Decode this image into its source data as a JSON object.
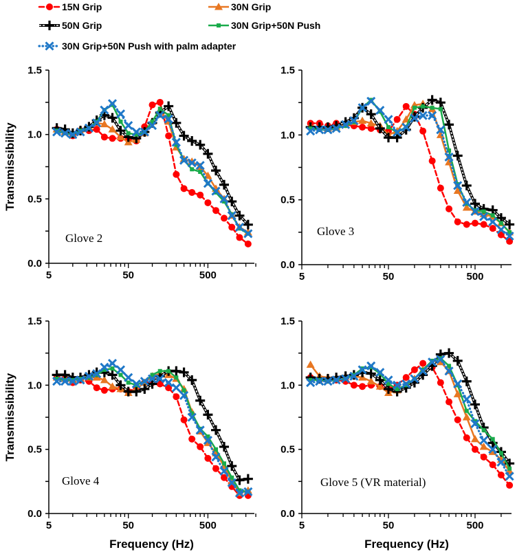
{
  "legend": {
    "placement": "top",
    "entries": [
      {
        "name": "15N Grip",
        "color": "#ff0000",
        "marker": "circle",
        "line": "dashed"
      },
      {
        "name": "30N Grip",
        "color": "#e87722",
        "marker": "triangle",
        "line": "solid"
      },
      {
        "name": "50N Grip",
        "color": "#000000",
        "marker": "plus",
        "line": "outlined-dashed"
      },
      {
        "name": "30N Grip+50N Push",
        "color": "#1aab4b",
        "marker": "square",
        "line": "solid"
      },
      {
        "name": "30N Grip+50N Push with palm adapter",
        "color": "#1f78c8",
        "marker": "x",
        "line": "dotted"
      }
    ]
  },
  "chart_data": [
    {
      "type": "line",
      "title": "Glove 2",
      "xlabel": "",
      "ylabel": "Transmissibility",
      "xscale": "log",
      "xlim": [
        5,
        2000
      ],
      "ylim": [
        0,
        1.5
      ],
      "xticks": [
        "5",
        "50",
        "500"
      ],
      "yticks": [
        "0.0",
        "0.5",
        "1.0",
        "1.5"
      ],
      "grid": false,
      "x": [
        6.3,
        8,
        10,
        12.5,
        16,
        20,
        25,
        31.5,
        40,
        50,
        63,
        80,
        100,
        125,
        160,
        200,
        250,
        315,
        400,
        500,
        630,
        800,
        1000,
        1250,
        1600
      ],
      "series": [
        {
          "name": "15N Grip",
          "values": [
            1.04,
            1.02,
            0.99,
            1.03,
            1.03,
            1.04,
            0.98,
            0.97,
            0.97,
            0.96,
            0.95,
            1.06,
            1.23,
            1.25,
            0.99,
            0.69,
            0.58,
            0.55,
            0.53,
            0.47,
            0.41,
            0.35,
            0.28,
            0.2,
            0.15
          ]
        },
        {
          "name": "30N Grip",
          "values": [
            1.04,
            1.02,
            1.0,
            1.04,
            1.06,
            1.09,
            1.08,
            1.04,
            0.98,
            0.94,
            0.96,
            1.01,
            1.1,
            1.19,
            1.1,
            0.9,
            0.81,
            0.79,
            0.75,
            0.68,
            0.58,
            0.5,
            0.37,
            0.28,
            0.24
          ]
        },
        {
          "name": "50N Grip",
          "values": [
            1.05,
            1.04,
            1.01,
            1.03,
            1.06,
            1.11,
            1.15,
            1.13,
            1.03,
            0.98,
            0.97,
            1.02,
            1.09,
            1.17,
            1.22,
            1.09,
            0.99,
            0.95,
            0.92,
            0.85,
            0.72,
            0.61,
            0.48,
            0.37,
            0.3
          ]
        },
        {
          "name": "30N Grip+50N Push",
          "values": [
            1.03,
            1.01,
            1.0,
            1.03,
            1.05,
            1.1,
            1.19,
            1.23,
            1.1,
            1.01,
            1.0,
            1.02,
            1.1,
            1.2,
            1.15,
            0.92,
            0.8,
            0.73,
            0.71,
            0.62,
            0.55,
            0.48,
            0.38,
            0.27,
            0.23
          ]
        },
        {
          "name": "30N Grip+50N Push with palm adapter",
          "values": [
            1.02,
            1.01,
            1.0,
            1.02,
            1.05,
            1.09,
            1.19,
            1.24,
            1.16,
            1.07,
            1.02,
            1.02,
            1.07,
            1.15,
            1.12,
            0.94,
            0.8,
            0.78,
            0.76,
            0.62,
            0.56,
            0.5,
            0.37,
            0.28,
            0.23
          ]
        }
      ]
    },
    {
      "type": "line",
      "title": "Glove 3",
      "xlabel": "",
      "ylabel": "",
      "xscale": "log",
      "xlim": [
        5,
        1250
      ],
      "ylim": [
        0,
        1.5
      ],
      "xticks": [
        "5",
        "50",
        "500"
      ],
      "yticks": [
        "0.0",
        "0.5",
        "1.0",
        "1.5"
      ],
      "grid": false,
      "x": [
        6.3,
        8,
        10,
        12.5,
        16,
        20,
        25,
        31.5,
        40,
        50,
        63,
        80,
        100,
        125,
        160,
        200,
        250,
        315,
        400,
        500,
        630,
        800,
        1000,
        1250
      ],
      "series": [
        {
          "name": "15N Grip",
          "values": [
            1.09,
            1.09,
            1.07,
            1.09,
            1.08,
            1.07,
            1.06,
            1.05,
            1.04,
            1.03,
            1.12,
            1.22,
            1.16,
            1.03,
            0.8,
            0.59,
            0.43,
            0.33,
            0.31,
            0.32,
            0.31,
            0.28,
            0.23,
            0.18
          ]
        },
        {
          "name": "30N Grip",
          "values": [
            1.07,
            1.06,
            1.05,
            1.06,
            1.08,
            1.1,
            1.11,
            1.09,
            1.07,
            1.0,
            1.03,
            1.12,
            1.23,
            1.24,
            1.2,
            1.0,
            0.79,
            0.57,
            0.44,
            0.41,
            0.39,
            0.37,
            0.32,
            0.25
          ]
        },
        {
          "name": "50N Grip",
          "values": [
            1.06,
            1.06,
            1.06,
            1.07,
            1.1,
            1.13,
            1.21,
            1.16,
            1.05,
            0.98,
            0.98,
            1.04,
            1.14,
            1.21,
            1.27,
            1.25,
            1.08,
            0.84,
            0.61,
            0.47,
            0.43,
            0.42,
            0.36,
            0.31
          ]
        },
        {
          "name": "30N Grip+50N Push",
          "values": [
            1.05,
            1.04,
            1.04,
            1.05,
            1.07,
            1.1,
            1.21,
            1.27,
            1.18,
            1.06,
            1.02,
            1.06,
            1.21,
            1.22,
            1.21,
            1.2,
            0.88,
            0.62,
            0.47,
            0.42,
            0.41,
            0.38,
            0.32,
            0.25
          ]
        },
        {
          "name": "30N Grip+50N Push with palm adapter",
          "values": [
            1.03,
            1.04,
            1.04,
            1.05,
            1.08,
            1.11,
            1.21,
            1.26,
            1.19,
            1.12,
            1.02,
            1.06,
            1.13,
            1.15,
            1.15,
            1.04,
            0.83,
            0.61,
            0.48,
            0.41,
            0.37,
            0.33,
            0.27,
            0.22
          ]
        }
      ]
    },
    {
      "type": "line",
      "title": "Glove 4",
      "xlabel": "Frequency (Hz)",
      "ylabel": "Transmissibility",
      "xscale": "log",
      "xlim": [
        5,
        2000
      ],
      "ylim": [
        0,
        1.5
      ],
      "xticks": [
        "5",
        "50",
        "500"
      ],
      "yticks": [
        "0.0",
        "0.5",
        "1.0",
        "1.5"
      ],
      "grid": false,
      "x": [
        6.3,
        8,
        10,
        12.5,
        16,
        20,
        25,
        31.5,
        40,
        50,
        63,
        80,
        100,
        125,
        160,
        200,
        250,
        315,
        400,
        500,
        630,
        800,
        1000,
        1250,
        1600
      ],
      "series": [
        {
          "name": "15N Grip",
          "values": [
            1.06,
            1.05,
            1.02,
            1.04,
            1.03,
            0.98,
            0.96,
            0.97,
            0.97,
            0.95,
            0.98,
            1.02,
            1.02,
            1.01,
            0.98,
            0.91,
            0.73,
            0.58,
            0.52,
            0.43,
            0.35,
            0.28,
            0.21,
            0.14,
            0.14
          ]
        },
        {
          "name": "30N Grip",
          "values": [
            1.06,
            1.05,
            1.04,
            1.05,
            1.06,
            1.06,
            1.04,
            0.99,
            0.97,
            0.94,
            0.97,
            1.02,
            1.07,
            1.09,
            1.08,
            1.05,
            0.97,
            0.79,
            0.64,
            0.55,
            0.47,
            0.37,
            0.25,
            0.16,
            0.18
          ]
        },
        {
          "name": "50N Grip",
          "values": [
            1.08,
            1.08,
            1.06,
            1.06,
            1.08,
            1.1,
            1.1,
            1.08,
            1.0,
            0.95,
            0.95,
            0.97,
            1.01,
            1.07,
            1.11,
            1.11,
            1.1,
            1.04,
            0.88,
            0.77,
            0.65,
            0.52,
            0.37,
            0.26,
            0.27
          ]
        },
        {
          "name": "30N Grip+50N Push",
          "values": [
            1.05,
            1.04,
            1.04,
            1.05,
            1.06,
            1.08,
            1.12,
            1.13,
            1.08,
            1.02,
            1.0,
            1.03,
            1.08,
            1.11,
            1.11,
            1.06,
            0.96,
            0.78,
            0.66,
            0.6,
            0.5,
            0.39,
            0.28,
            0.18,
            0.17
          ]
        },
        {
          "name": "30N Grip+50N Push with palm adapter",
          "values": [
            1.03,
            1.03,
            1.03,
            1.04,
            1.07,
            1.09,
            1.14,
            1.17,
            1.12,
            1.06,
            1.01,
            1.03,
            1.05,
            1.05,
            1.02,
            0.98,
            0.92,
            0.75,
            0.65,
            0.57,
            0.44,
            0.33,
            0.24,
            0.16,
            0.17
          ]
        }
      ]
    },
    {
      "type": "line",
      "title": "Glove 5 (VR material)",
      "xlabel": "Frequency (Hz)",
      "ylabel": "",
      "xscale": "log",
      "xlim": [
        5,
        1250
      ],
      "ylim": [
        0,
        1.5
      ],
      "xticks": [
        "5",
        "50",
        "500"
      ],
      "yticks": [
        "0.0",
        "0.5",
        "1.0",
        "1.5"
      ],
      "grid": false,
      "x": [
        6.3,
        8,
        10,
        12.5,
        16,
        20,
        25,
        31.5,
        40,
        50,
        63,
        80,
        100,
        125,
        160,
        200,
        250,
        315,
        400,
        500,
        630,
        800,
        1000,
        1250
      ],
      "series": [
        {
          "name": "15N Grip",
          "values": [
            1.06,
            1.04,
            1.04,
            1.04,
            1.03,
            1.0,
            0.99,
            1.0,
            0.99,
            0.97,
            1.0,
            1.06,
            1.12,
            1.17,
            1.14,
            1.02,
            0.87,
            0.73,
            0.59,
            0.5,
            0.44,
            0.38,
            0.3,
            0.22
          ]
        },
        {
          "name": "30N Grip",
          "values": [
            1.16,
            1.07,
            1.06,
            1.06,
            1.07,
            1.07,
            1.06,
            1.03,
            0.99,
            0.94,
            0.96,
            1.0,
            1.05,
            1.12,
            1.17,
            1.18,
            1.11,
            0.93,
            0.75,
            0.58,
            0.52,
            0.48,
            0.42,
            0.33
          ]
        },
        {
          "name": "50N Grip",
          "values": [
            1.06,
            1.05,
            1.05,
            1.06,
            1.07,
            1.08,
            1.1,
            1.09,
            1.04,
            0.97,
            0.95,
            0.98,
            1.02,
            1.08,
            1.15,
            1.24,
            1.25,
            1.19,
            1.03,
            0.85,
            0.67,
            0.55,
            0.48,
            0.39
          ]
        },
        {
          "name": "30N Grip+50N Push",
          "values": [
            1.04,
            1.04,
            1.03,
            1.04,
            1.05,
            1.08,
            1.13,
            1.14,
            1.09,
            1.01,
            0.97,
            1.0,
            1.05,
            1.12,
            1.19,
            1.21,
            1.15,
            1.0,
            0.8,
            0.72,
            0.65,
            0.58,
            0.47,
            0.35
          ]
        },
        {
          "name": "30N Grip+50N Push with palm adapter",
          "values": [
            1.02,
            1.03,
            1.03,
            1.04,
            1.05,
            1.07,
            1.12,
            1.15,
            1.1,
            1.04,
            1.0,
            1.01,
            1.05,
            1.11,
            1.18,
            1.2,
            1.11,
            1.01,
            0.89,
            0.7,
            0.57,
            0.5,
            0.4,
            0.29
          ]
        }
      ]
    }
  ]
}
